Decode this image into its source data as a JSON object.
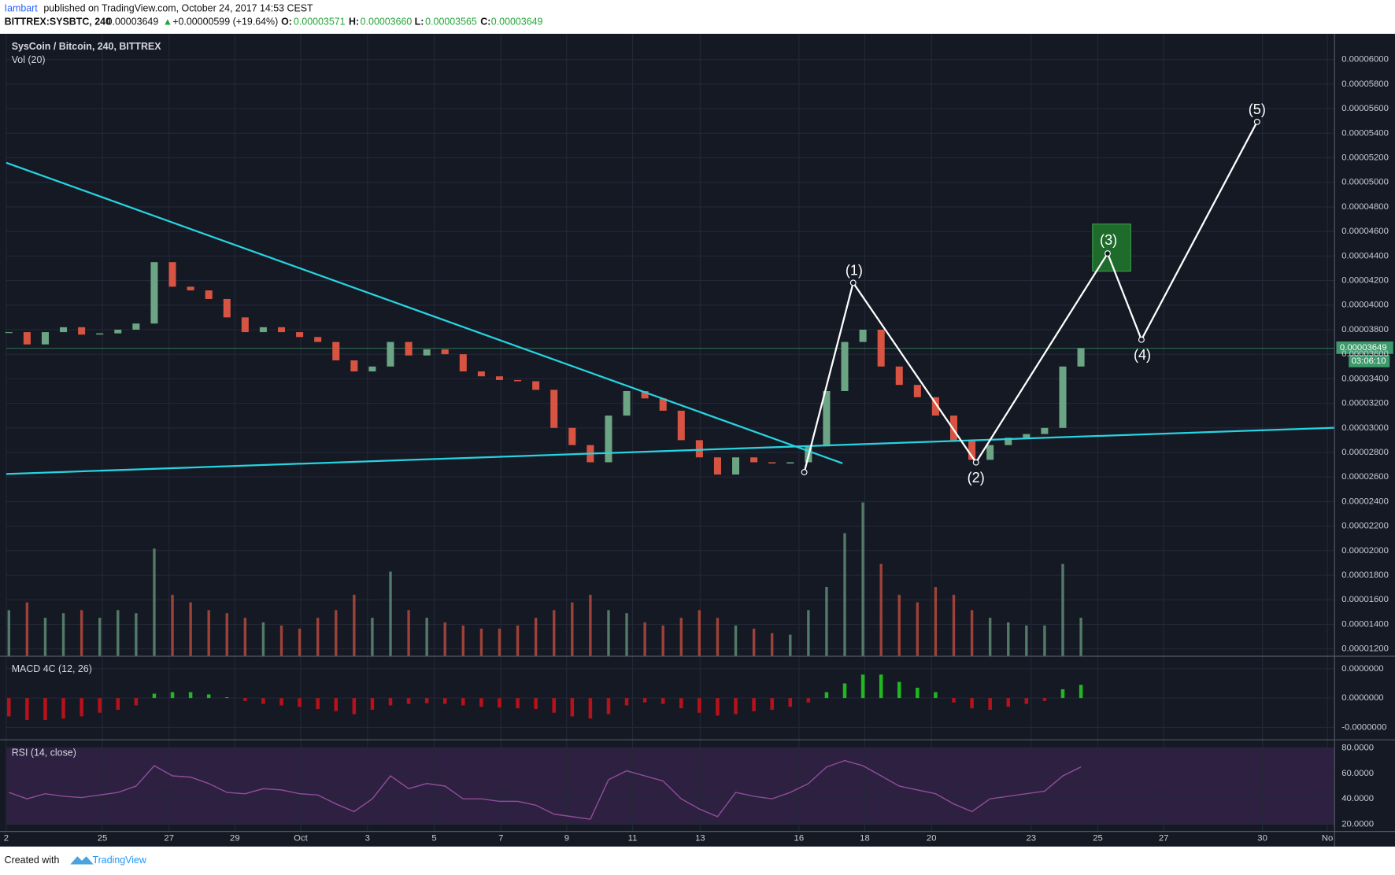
{
  "header": {
    "author": "Iambart",
    "published": "published on TradingView.com, October 24, 2017 14:53 CEST",
    "symbol": "BITTREX:SYSBTC, 240",
    "last": "0.00003649",
    "arrow": "▲",
    "change": "+0.00000599 (+19.64%)",
    "o_label": "O:",
    "o": "0.00003571",
    "h_label": "H:",
    "h": "0.00003660",
    "l_label": "L:",
    "l": "0.00003565",
    "c_label": "C:",
    "c": "0.00003649"
  },
  "chart_data": {
    "type": "candlestick",
    "title": "SysCoin / Bitcoin, 240, BITTREX",
    "volume_title": "Vol (20)",
    "up_color": "#6ba583",
    "down_color": "#d75442",
    "values": [
      3.78e-05,
      3.68e-05,
      3.78e-05,
      3.82e-05,
      3.76e-05,
      3.77e-05,
      3.8e-05,
      3.85e-05,
      4.35e-05,
      4.15e-05,
      4.12e-05,
      4.05e-05,
      3.9e-05,
      3.78e-05,
      3.82e-05,
      3.78e-05,
      3.74e-05,
      3.7e-05,
      3.55e-05,
      3.46e-05,
      3.5e-05,
      3.7e-05,
      3.59e-05,
      3.64e-05,
      3.6e-05,
      3.46e-05,
      3.42e-05,
      3.39e-05,
      3.38e-05,
      3.31e-05,
      3e-05,
      2.86e-05,
      2.72e-05,
      3.1e-05,
      3.3e-05,
      3.24e-05,
      3.14e-05,
      2.9e-05,
      2.76e-05,
      2.62e-05,
      2.76e-05,
      2.72e-05,
      2.71e-05,
      2.72e-05,
      2.85e-05,
      3.3e-05,
      3.7e-05,
      3.8e-05,
      3.5e-05,
      3.35e-05,
      3.25e-05,
      3.1e-05,
      2.9e-05,
      2.74e-05,
      2.86e-05,
      2.92e-05,
      2.95e-05,
      3e-05,
      3.5e-05,
      3.649e-05
    ],
    "volume": [
      30,
      35,
      25,
      28,
      30,
      25,
      30,
      28,
      70,
      40,
      35,
      30,
      28,
      25,
      22,
      20,
      18,
      25,
      30,
      40,
      25,
      55,
      30,
      25,
      22,
      20,
      18,
      18,
      20,
      25,
      30,
      35,
      40,
      30,
      28,
      22,
      20,
      25,
      30,
      25,
      20,
      18,
      15,
      14,
      30,
      45,
      80,
      100,
      60,
      40,
      35,
      45,
      40,
      30,
      25,
      22,
      20,
      20,
      60,
      25
    ],
    "ylim": [
      1.14e-05,
      6.21e-05
    ],
    "yticks": [
      {
        "value": 1.2e-05,
        "label": "0.00001200"
      },
      {
        "value": 1.4e-05,
        "label": "0.00001400"
      },
      {
        "value": 1.6e-05,
        "label": "0.00001600"
      },
      {
        "value": 1.8e-05,
        "label": "0.00001800"
      },
      {
        "value": 2e-05,
        "label": "0.00002000"
      },
      {
        "value": 2.2e-05,
        "label": "0.00002200"
      },
      {
        "value": 2.4e-05,
        "label": "0.00002400"
      },
      {
        "value": 2.6e-05,
        "label": "0.00002600"
      },
      {
        "value": 2.8e-05,
        "label": "0.00002800"
      },
      {
        "value": 3e-05,
        "label": "0.00003000"
      },
      {
        "value": 3.2e-05,
        "label": "0.00003200"
      },
      {
        "value": 3.4e-05,
        "label": "0.00003400"
      },
      {
        "value": 3.6e-05,
        "label": "0.00003600"
      },
      {
        "value": 3.8e-05,
        "label": "0.00003800"
      },
      {
        "value": 4e-05,
        "label": "0.00004000"
      },
      {
        "value": 4.2e-05,
        "label": "0.00004200"
      },
      {
        "value": 4.4e-05,
        "label": "0.00004400"
      },
      {
        "value": 4.6e-05,
        "label": "0.00004600"
      },
      {
        "value": 4.8e-05,
        "label": "0.00004800"
      },
      {
        "value": 5e-05,
        "label": "0.00005000"
      },
      {
        "value": 5.2e-05,
        "label": "0.00005200"
      },
      {
        "value": 5.4e-05,
        "label": "0.00005400"
      },
      {
        "value": 5.6e-05,
        "label": "0.00005600"
      },
      {
        "value": 5.8e-05,
        "label": "0.00005800"
      },
      {
        "value": 6e-05,
        "label": "0.00006000"
      }
    ],
    "last_price_label": "0.00003649",
    "countdown": "03:06:10",
    "x_labels": [
      "2",
      "25",
      "27",
      "29",
      "Oct",
      "3",
      "5",
      "7",
      "9",
      "11",
      "13",
      "16",
      "18",
      "20",
      "23",
      "25",
      "27",
      "30",
      "No"
    ],
    "annotations": [
      "(1)",
      "(2)",
      "(3)",
      "(4)",
      "(5)"
    ],
    "macd": {
      "title": "MACD 4C (12, 26)",
      "up_color": "#1fb81f",
      "down_color": "#b5121b",
      "values": [
        -2.5e-08,
        -3e-08,
        -3e-08,
        -2.8e-08,
        -2.5e-08,
        -2e-08,
        -1.6e-08,
        -1e-08,
        6e-09,
        8e-09,
        8e-09,
        5e-09,
        1e-09,
        -4e-09,
        -8e-09,
        -1e-08,
        -1.2e-08,
        -1.5e-08,
        -1.8e-08,
        -2.2e-08,
        -1.6e-08,
        -1e-08,
        -8e-09,
        -7e-09,
        -8e-09,
        -1e-08,
        -1.2e-08,
        -1.3e-08,
        -1.4e-08,
        -1.5e-08,
        -2e-08,
        -2.5e-08,
        -2.8e-08,
        -2.2e-08,
        -1e-08,
        -6e-09,
        -8e-09,
        -1.4e-08,
        -2e-08,
        -2.4e-08,
        -2.2e-08,
        -1.8e-08,
        -1.6e-08,
        -1.2e-08,
        -6e-09,
        8e-09,
        2e-08,
        3.2e-08,
        3.2e-08,
        2.2e-08,
        1.4e-08,
        8e-09,
        -6e-09,
        -1.4e-08,
        -1.6e-08,
        -1.2e-08,
        -8e-09,
        -4e-09,
        1.2e-08,
        1.8e-08
      ],
      "ylim": [
        -5.7e-08,
        5.7e-08
      ],
      "yticks": [
        {
          "value": 4e-08,
          "label": "0.0000000"
        },
        {
          "value": 0,
          "label": "0.0000000"
        },
        {
          "value": -4e-08,
          "label": "-0.0000000"
        }
      ]
    },
    "rsi": {
      "title": "RSI (14, close)",
      "color": "#8e4c96",
      "values": [
        45,
        40,
        44,
        42,
        41,
        43,
        45,
        50,
        66,
        58,
        57,
        52,
        45,
        44,
        48,
        47,
        44,
        43,
        36,
        30,
        40,
        58,
        48,
        52,
        50,
        40,
        40,
        38,
        38,
        35,
        28,
        26,
        24,
        55,
        62,
        58,
        54,
        40,
        32,
        26,
        45,
        42,
        40,
        45,
        52,
        65,
        70,
        66,
        58,
        50,
        47,
        44,
        36,
        30,
        40,
        42,
        44,
        46,
        58,
        65
      ],
      "ylim": [
        14.4,
        86.3
      ],
      "yticks": [
        {
          "value": 80,
          "label": "80.0000"
        },
        {
          "value": 60,
          "label": "60.0000"
        },
        {
          "value": 40,
          "label": "40.0000"
        },
        {
          "value": 20,
          "label": "20.0000"
        }
      ]
    }
  },
  "footer": {
    "text": "Created with",
    "brand": "TradingView"
  }
}
